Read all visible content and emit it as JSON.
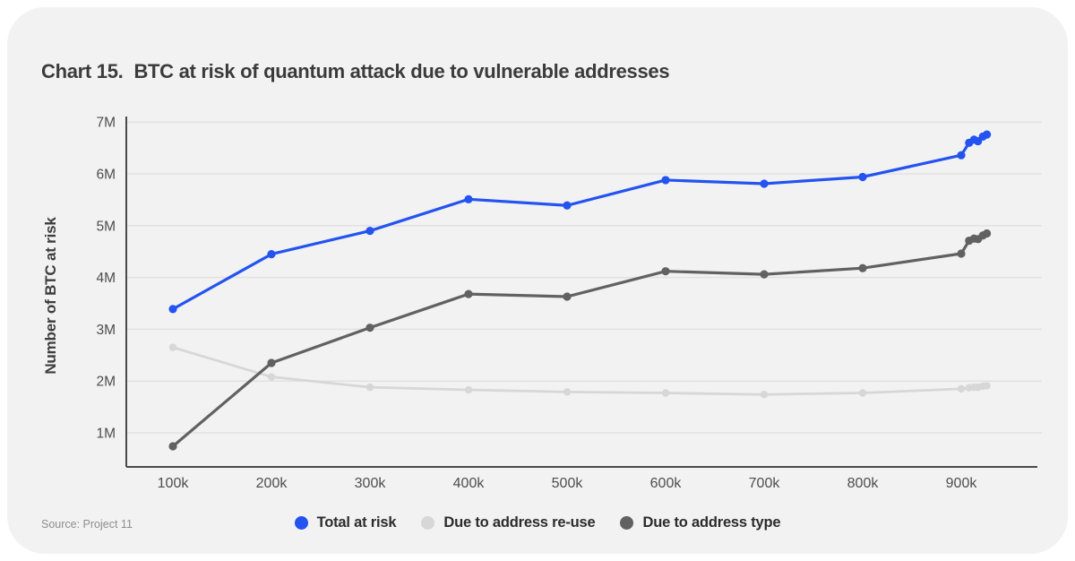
{
  "page": {
    "title_prefix": "Chart 15.",
    "title_text": "BTC at risk of quantum attack due to vulnerable addresses",
    "source": "Source: Project 11",
    "background_color": "#ffffff",
    "panel_background_color": "#f2f2f2"
  },
  "chart_data": {
    "type": "line",
    "title": "Chart 15. BTC at risk of quantum attack due to vulnerable addresses",
    "xlabel": "",
    "ylabel": "Number of BTC at risk",
    "grid": "horizontal",
    "legend_position": "bottom-center",
    "axis_color": "#4a4a4a",
    "grid_color": "#e1e1e1",
    "tick_color": "#4d4d4d",
    "xlim": [
      53,
      977
    ],
    "ylim": [
      0.3,
      7.1
    ],
    "x_unit_suffix": "k",
    "y_unit_suffix": "M",
    "x": [
      100,
      200,
      300,
      400,
      500,
      600,
      700,
      800,
      900,
      908,
      913,
      917,
      922,
      926
    ],
    "x_ticks": [
      {
        "value": 100,
        "label": "100k"
      },
      {
        "value": 200,
        "label": "200k"
      },
      {
        "value": 300,
        "label": "300k"
      },
      {
        "value": 400,
        "label": "400k"
      },
      {
        "value": 500,
        "label": "500k"
      },
      {
        "value": 600,
        "label": "600k"
      },
      {
        "value": 700,
        "label": "700k"
      },
      {
        "value": 800,
        "label": "800k"
      },
      {
        "value": 900,
        "label": "900k"
      }
    ],
    "y_ticks": [
      {
        "value": 1,
        "label": "1M"
      },
      {
        "value": 2,
        "label": "2M"
      },
      {
        "value": 3,
        "label": "3M"
      },
      {
        "value": 4,
        "label": "4M"
      },
      {
        "value": 5,
        "label": "5M"
      },
      {
        "value": 6,
        "label": "6M"
      },
      {
        "value": 7,
        "label": "7M"
      }
    ],
    "series": [
      {
        "name": "Total at risk",
        "color": "#2353f0",
        "z": 3,
        "line_width": 3.2,
        "marker_radius": 4.6,
        "values": [
          3.39,
          4.45,
          4.9,
          5.51,
          5.39,
          5.88,
          5.81,
          5.94,
          6.36,
          6.6,
          6.66,
          6.63,
          6.72,
          6.76
        ]
      },
      {
        "name": "Due to address re-use",
        "color": "#d7d7d7",
        "z": 1,
        "line_width": 2.8,
        "marker_radius": 4.2,
        "values": [
          2.65,
          2.08,
          1.88,
          1.83,
          1.79,
          1.77,
          1.74,
          1.77,
          1.85,
          1.87,
          1.88,
          1.88,
          1.9,
          1.91
        ]
      },
      {
        "name": "Due to address type",
        "color": "#616161",
        "z": 2,
        "line_width": 3.2,
        "marker_radius": 4.6,
        "values": [
          0.74,
          2.35,
          3.03,
          3.68,
          3.63,
          4.12,
          4.06,
          4.18,
          4.46,
          4.71,
          4.75,
          4.74,
          4.81,
          4.85
        ]
      }
    ]
  }
}
